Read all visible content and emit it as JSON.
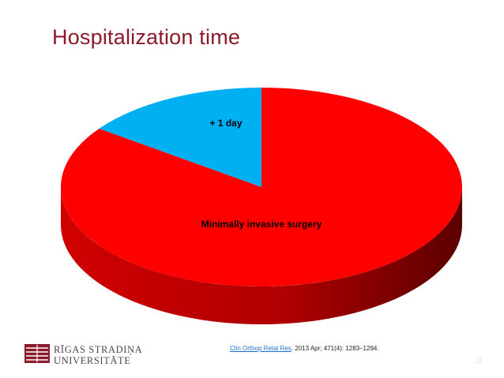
{
  "slide": {
    "title": "Hospitalization time",
    "citation": {
      "link_text": "Clin Orthop Relat Res",
      "rest": ". 2013 Apr; 471(4): 1283–1294."
    },
    "page_number": "11",
    "logo": {
      "line1": "RĪGAS STRADIŅA",
      "line2": "UNIVERSITĀTE"
    }
  },
  "chart_data": {
    "type": "pie",
    "style": "3d",
    "slices": [
      {
        "label": "Minimally invasive surgery",
        "value": 85,
        "color": "#ff0000"
      },
      {
        "label": "+ 1 day",
        "value": 15,
        "color": "#00b0f0"
      }
    ],
    "legend": "none"
  }
}
